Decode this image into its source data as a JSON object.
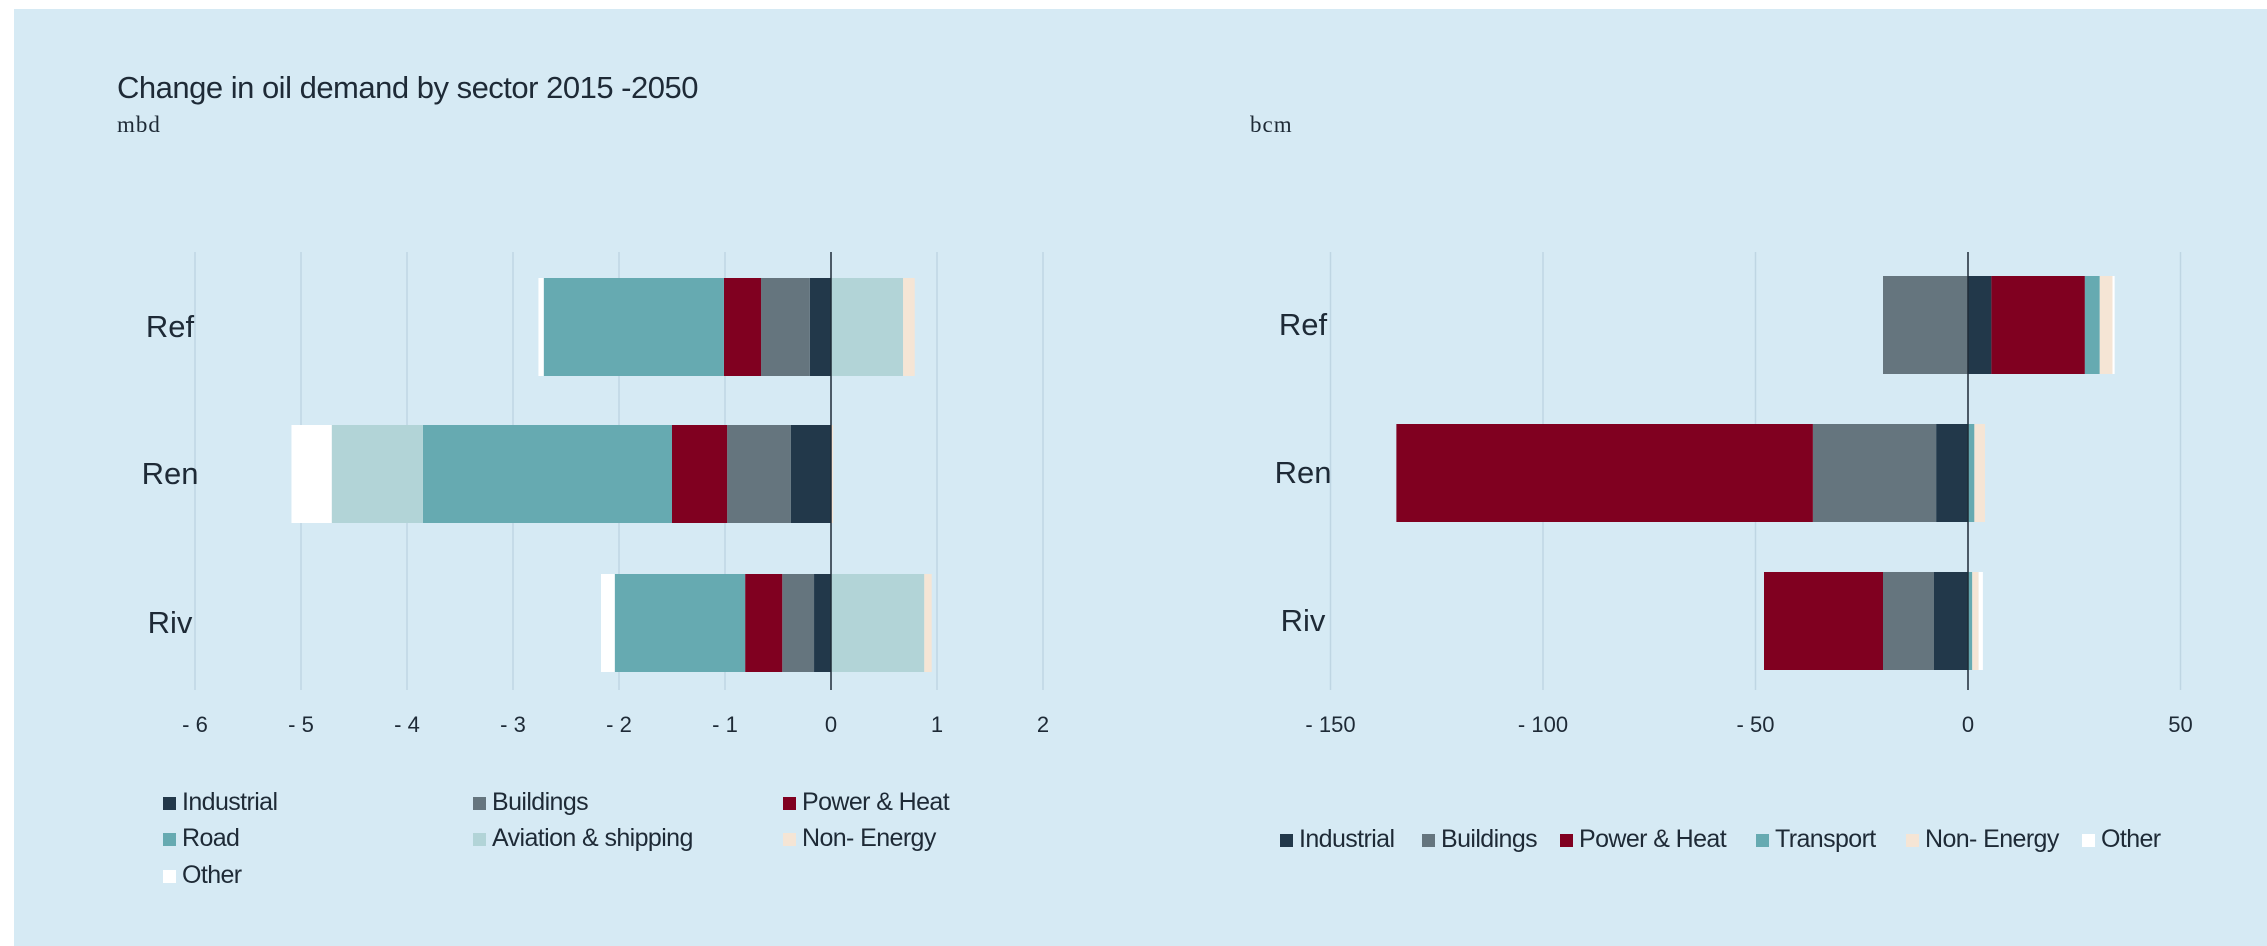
{
  "title": "Change in oil demand by sector 2015 -2050",
  "chart_data": [
    {
      "type": "bar",
      "orientation": "horizontal",
      "stacked": true,
      "unit": "mbd",
      "categories": [
        "Ref",
        "Ren",
        "Riv"
      ],
      "xlim": [
        -6,
        2
      ],
      "xticks": [
        -6,
        -5,
        -4,
        -3,
        -2,
        -1,
        0,
        1,
        2
      ],
      "xtick_labels": [
        "- 6",
        "- 5",
        "- 4",
        "- 3",
        "- 2",
        "- 1",
        "0",
        "1",
        "2"
      ],
      "grid": "vertical",
      "legend": "bottom",
      "series": [
        {
          "name": "Industrial",
          "color": "#22384a",
          "values": [
            -0.2,
            -0.38,
            -0.16
          ]
        },
        {
          "name": "Buildings",
          "color": "#65757e",
          "values": [
            -0.46,
            -0.6,
            -0.3
          ]
        },
        {
          "name": "Power & Heat",
          "color": "#800020",
          "values": [
            -0.35,
            -0.52,
            -0.35
          ]
        },
        {
          "name": "Road",
          "color": "#66aab1",
          "values": [
            -1.7,
            -2.35,
            -1.23
          ]
        },
        {
          "name": "Aviation & shipping",
          "color": "#b2d4d7",
          "values": [
            0.68,
            -0.86,
            0.88
          ]
        },
        {
          "name": "Non- Energy",
          "color": "#f5e5d5",
          "values": [
            0.11,
            0.02,
            0.07
          ]
        },
        {
          "name": "Other",
          "color": "#ffffff",
          "values": [
            -0.05,
            -0.38,
            -0.13
          ]
        }
      ]
    },
    {
      "type": "bar",
      "orientation": "horizontal",
      "stacked": true,
      "unit": "bcm",
      "categories": [
        "Ref",
        "Ren",
        "Riv"
      ],
      "xlim": [
        -150,
        50
      ],
      "xticks": [
        -150,
        -100,
        -50,
        0,
        50
      ],
      "xtick_labels": [
        "- 150",
        "- 100",
        "- 50",
        "0",
        "50"
      ],
      "grid": "vertical",
      "legend": "bottom",
      "series": [
        {
          "name": "Industrial",
          "color": "#22384a",
          "values": [
            5.5,
            -7.5,
            -8
          ]
        },
        {
          "name": "Buildings",
          "color": "#65757e",
          "values": [
            -20,
            -29,
            -12
          ]
        },
        {
          "name": "Power & Heat",
          "color": "#800020",
          "values": [
            22,
            -98,
            -28
          ]
        },
        {
          "name": "Transport",
          "color": "#66aab1",
          "values": [
            3.5,
            1.5,
            1
          ]
        },
        {
          "name": "Non- Energy",
          "color": "#f5e5d5",
          "values": [
            3,
            2.5,
            1.5
          ]
        },
        {
          "name": "Other",
          "color": "#ffffff",
          "values": [
            0.5,
            0,
            1
          ]
        }
      ]
    }
  ]
}
